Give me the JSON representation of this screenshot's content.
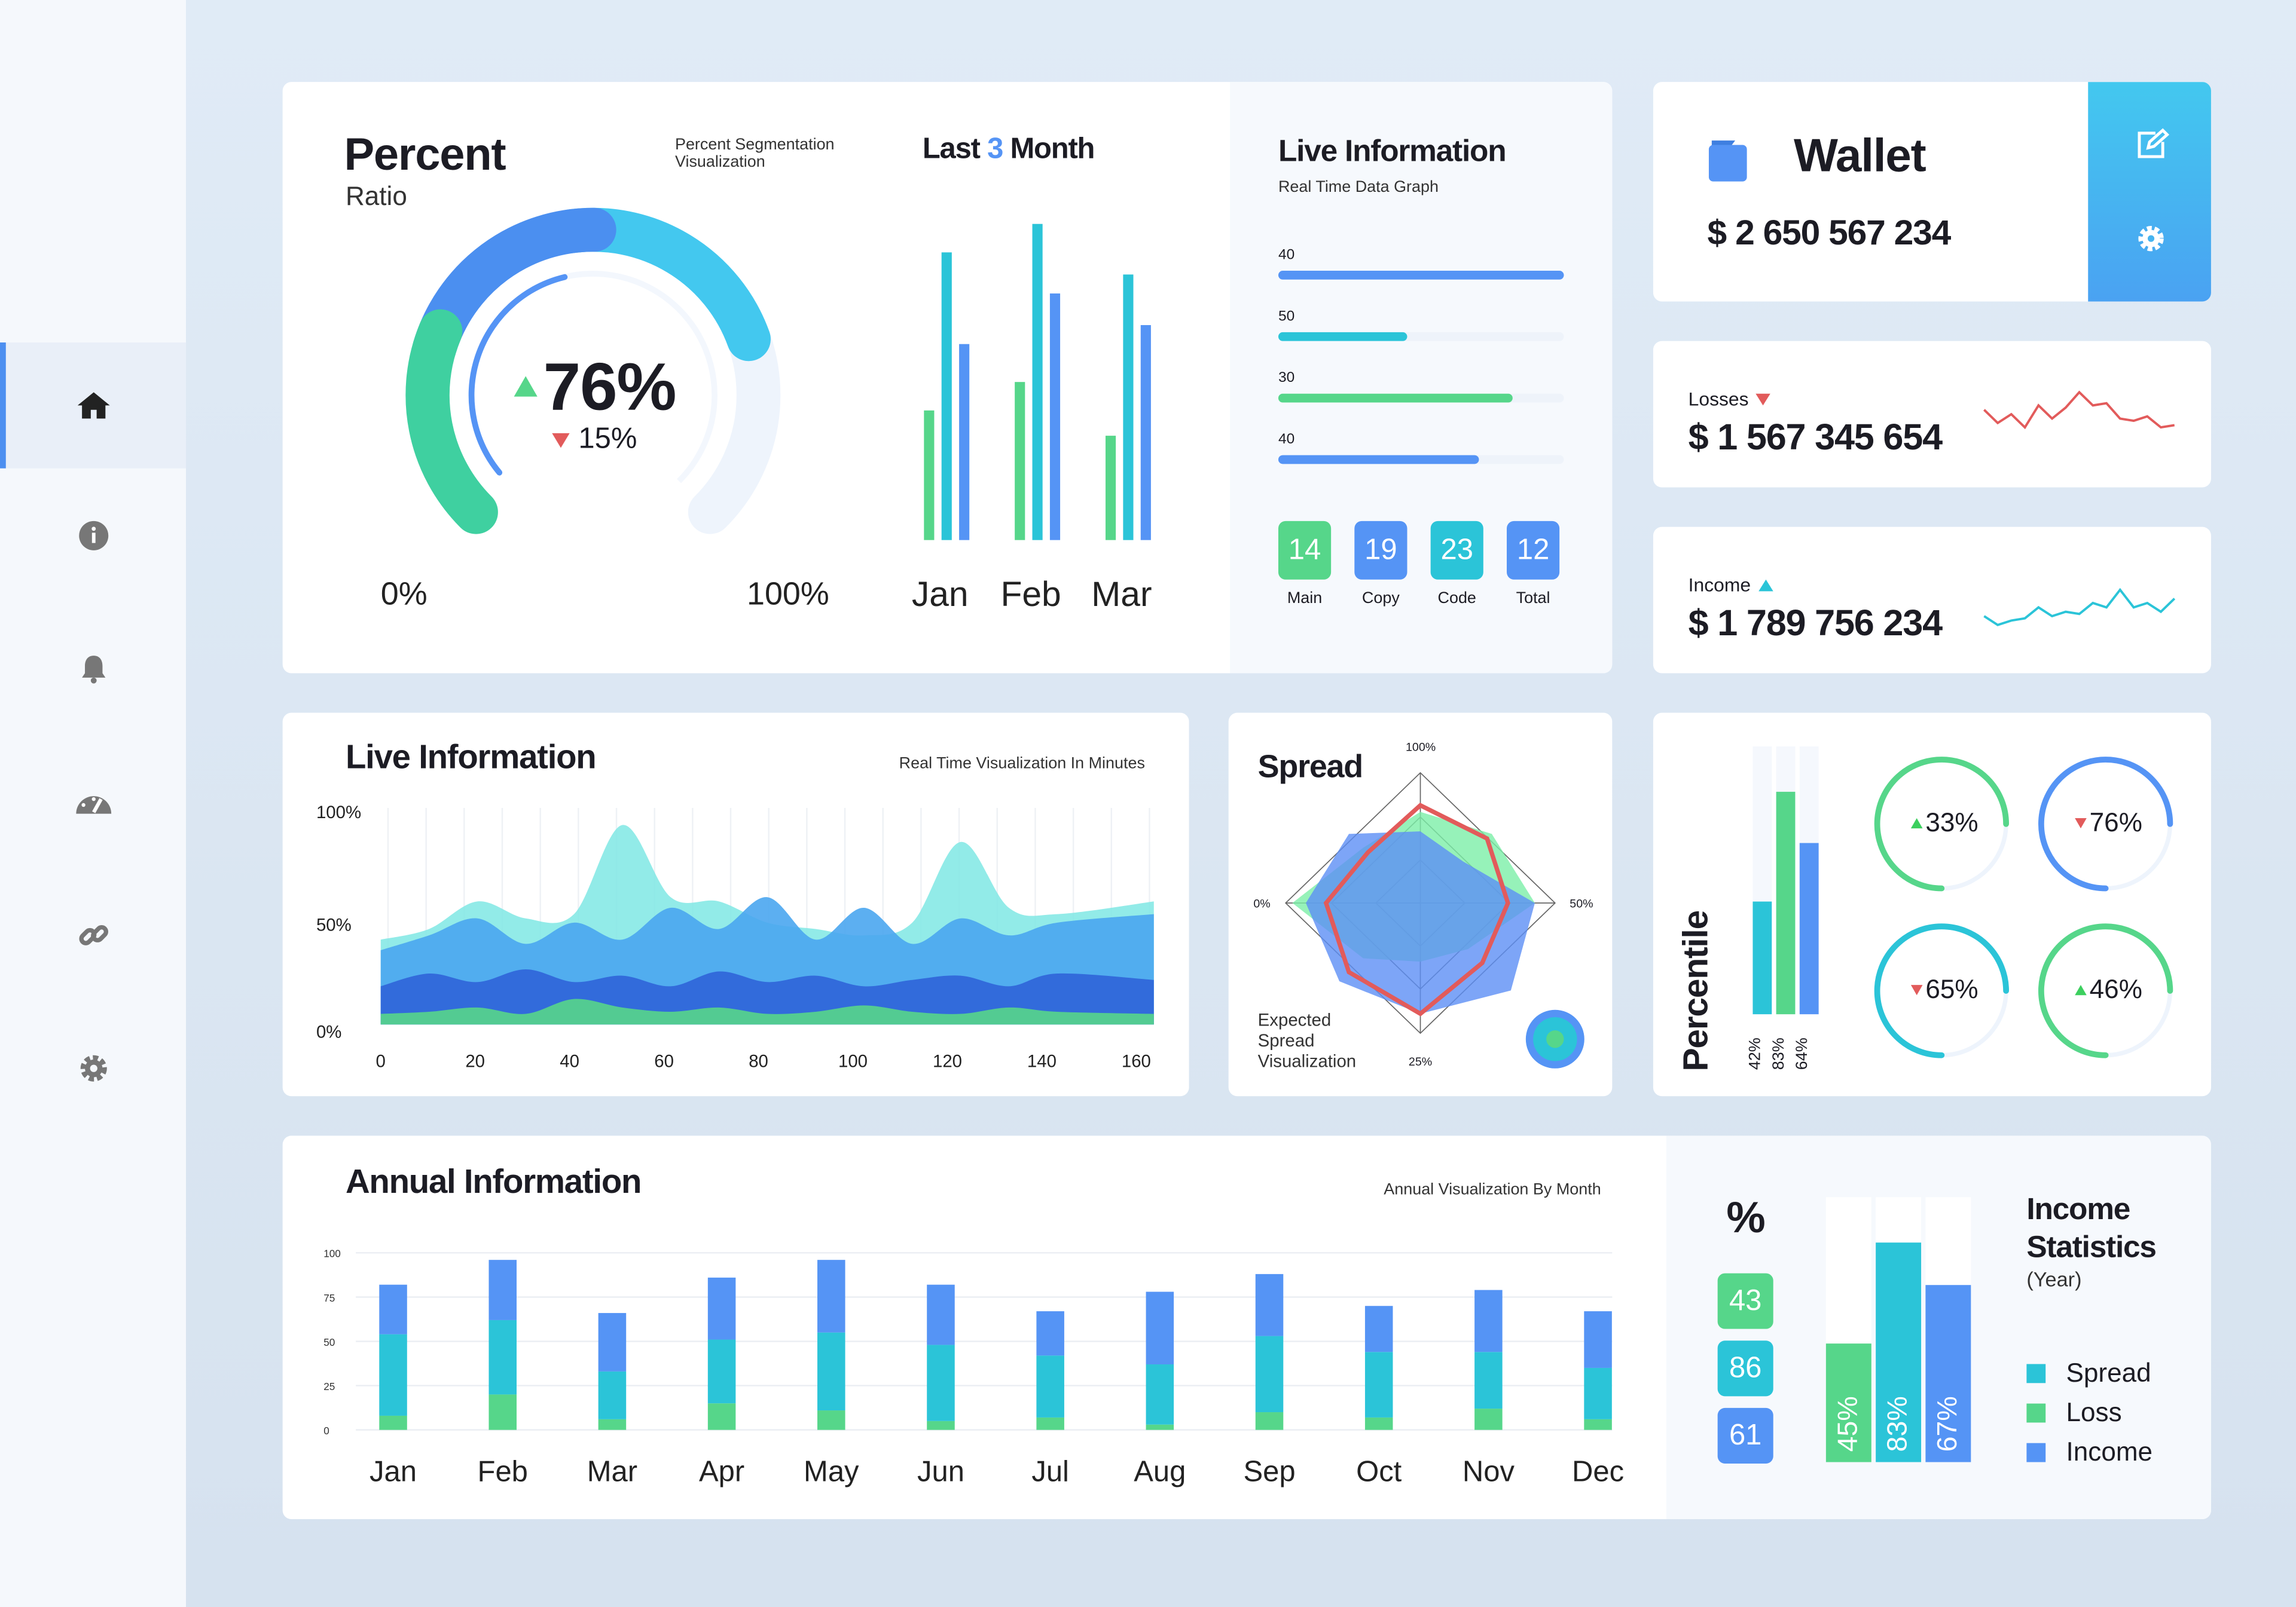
{
  "colors": {
    "green": "#56d68a",
    "cyan": "#2bc4d8",
    "blue": "#5594f5",
    "red": "#e25b5b",
    "light": "#eef4fc"
  },
  "sidebar": {
    "items": [
      {
        "name": "home",
        "icon": "home-icon",
        "active": true
      },
      {
        "name": "info",
        "icon": "info-icon"
      },
      {
        "name": "notifications",
        "icon": "bell-icon"
      },
      {
        "name": "dashboard",
        "icon": "gauge-icon"
      },
      {
        "name": "links",
        "icon": "link-icon"
      },
      {
        "name": "settings",
        "icon": "gear-icon"
      }
    ]
  },
  "percent": {
    "title": "Percent",
    "subtitle": "Ratio",
    "caption_line1": "Percent Segmentation",
    "caption_line2": "Visualization",
    "value": 76,
    "value_label": "76%",
    "change_label": "15%",
    "min_label": "0%",
    "max_label": "100%"
  },
  "last3": {
    "title_pre": "Last ",
    "title_num": "3",
    "title_post": " Month"
  },
  "live_top": {
    "title": "Live Information",
    "subtitle": "Real Time Data Graph",
    "bars": [
      {
        "label": "40",
        "fill": 1.0,
        "color": "#5594f5"
      },
      {
        "label": "50",
        "fill": 0.45,
        "color": "#2bc4d8"
      },
      {
        "label": "30",
        "fill": 0.82,
        "color": "#56d68a"
      },
      {
        "label": "40",
        "fill": 0.7,
        "color": "#5594f5"
      }
    ],
    "boxes": [
      {
        "value": "14",
        "label": "Main",
        "color": "#56d68a"
      },
      {
        "value": "19",
        "label": "Copy",
        "color": "#5594f5"
      },
      {
        "value": "23",
        "label": "Code",
        "color": "#2bc4d8"
      },
      {
        "value": "12",
        "label": "Total",
        "color": "#5594f5"
      }
    ]
  },
  "wallet": {
    "title": "Wallet",
    "amount": "$ 2 650 567 234",
    "edit_icon": "edit-icon",
    "settings_icon": "gear-icon"
  },
  "losses": {
    "label": "Losses",
    "amount": "$ 1 567 345 654",
    "trend": "down",
    "spark": [
      0.5,
      0.2,
      0.4,
      0.1,
      0.6,
      0.3,
      0.55,
      0.9,
      0.6,
      0.65,
      0.3,
      0.25,
      0.35,
      0.1,
      0.15
    ]
  },
  "income": {
    "label": "Income",
    "amount": "$ 1 789 756 234",
    "trend": "up",
    "spark": [
      0.3,
      0.1,
      0.2,
      0.25,
      0.5,
      0.3,
      0.4,
      0.35,
      0.6,
      0.5,
      0.9,
      0.5,
      0.6,
      0.4,
      0.7
    ]
  },
  "live_area": {
    "title": "Live Information",
    "subtitle": "Real Time Visualization In Minutes"
  },
  "spread": {
    "title": "Spread",
    "caption_line1": "Expected",
    "caption_line2": "Spread",
    "caption_line3": "Visualization",
    "axis_top": "100%",
    "axis_right": "50%",
    "axis_bottom": "25%",
    "axis_left": "0%"
  },
  "percentile": {
    "title": "Percentile",
    "bars": [
      {
        "value": 42,
        "label": "42%",
        "color": "#2bc4d8"
      },
      {
        "value": 83,
        "label": "83%",
        "color": "#56d68a"
      },
      {
        "value": 64,
        "label": "64%",
        "color": "#5594f5"
      }
    ],
    "rings": [
      {
        "label": "33%",
        "trend": "up",
        "color": "#56d68a"
      },
      {
        "label": "76%",
        "trend": "down",
        "color": "#5594f5"
      },
      {
        "label": "65%",
        "trend": "down",
        "color": "#2bc4d8"
      },
      {
        "label": "46%",
        "trend": "up",
        "color": "#56d68a"
      }
    ]
  },
  "annual": {
    "title": "Annual Information",
    "subtitle": "Annual Visualization By Month"
  },
  "income_stats": {
    "symbol": "%",
    "title_line1": "Income",
    "title_line2": "Statistics",
    "period": "(Year)",
    "boxes": [
      {
        "value": "43",
        "color": "#56d68a"
      },
      {
        "value": "86",
        "color": "#2bc4d8"
      },
      {
        "value": "61",
        "color": "#5594f5"
      }
    ],
    "bars": [
      {
        "value": 45,
        "label": "45%",
        "color": "#56d68a"
      },
      {
        "value": 83,
        "label": "83%",
        "color": "#2bc4d8"
      },
      {
        "value": 67,
        "label": "67%",
        "color": "#5594f5"
      }
    ],
    "legend": [
      {
        "label": "Spread",
        "color": "#2bc4d8"
      },
      {
        "label": "Loss",
        "color": "#56d68a"
      },
      {
        "label": "Income",
        "color": "#5594f5"
      }
    ]
  },
  "chart_data": [
    {
      "type": "bar",
      "id": "last3",
      "categories": [
        "Jan",
        "Feb",
        "Mar"
      ],
      "series": [
        {
          "values": [
            41,
            50,
            33
          ],
          "color": "#56d68a"
        },
        {
          "values": [
            91,
            100,
            84
          ],
          "color": "#2bc4d8"
        },
        {
          "values": [
            62,
            78,
            68
          ],
          "color": "#5594f5"
        }
      ]
    },
    {
      "type": "area",
      "id": "live_area",
      "x": [
        0,
        10,
        20,
        30,
        40,
        50,
        60,
        70,
        80,
        90,
        100,
        110,
        120,
        130,
        140,
        160
      ],
      "xticks": [
        "0",
        "20",
        "40",
        "60",
        "80",
        "100",
        "120",
        "140",
        "160"
      ],
      "yticks": [
        "100%",
        "50%",
        "0%"
      ],
      "ylim": [
        0,
        100
      ],
      "xlim": [
        0,
        160
      ],
      "series": [
        {
          "values": [
            40,
            45,
            58,
            50,
            52,
            94,
            60,
            58,
            48,
            45,
            42,
            48,
            86,
            55,
            52,
            58
          ],
          "color": "#7fe7e4"
        },
        {
          "values": [
            35,
            42,
            50,
            38,
            48,
            40,
            55,
            45,
            60,
            40,
            55,
            38,
            50,
            42,
            48,
            52
          ],
          "color": "#4aa6f0"
        },
        {
          "values": [
            18,
            24,
            20,
            26,
            20,
            23,
            18,
            25,
            20,
            23,
            18,
            21,
            23,
            18,
            24,
            21
          ],
          "color": "#2f64d8"
        },
        {
          "values": [
            5,
            6,
            8,
            5,
            12,
            8,
            6,
            8,
            5,
            6,
            9,
            6,
            5,
            8,
            6,
            5
          ],
          "color": "#56d68a"
        }
      ]
    },
    {
      "type": "radar",
      "id": "spread",
      "axes": 8,
      "series": [
        {
          "values": [
            0.7,
            0.75,
            0.85,
            0.5,
            0.45,
            0.6,
            0.95,
            0.6
          ],
          "color": "#7cefa8",
          "fill": true
        },
        {
          "values": [
            0.55,
            0.45,
            0.85,
            0.95,
            0.85,
            0.85,
            0.85,
            0.75
          ],
          "color": "#5c8ff5",
          "fill": true
        },
        {
          "values": [
            0.75,
            0.7,
            0.65,
            0.65,
            0.85,
            0.75,
            0.7,
            0.55
          ],
          "color": "#e25b5b",
          "fill": false
        }
      ]
    },
    {
      "type": "bar",
      "stacked": true,
      "id": "annual",
      "categories": [
        "Jan",
        "Feb",
        "Mar",
        "Apr",
        "May",
        "Jun",
        "Jul",
        "Aug",
        "Sep",
        "Oct",
        "Nov",
        "Dec"
      ],
      "yticks": [
        100,
        75,
        50,
        25,
        0
      ],
      "ylim": [
        0,
        100
      ],
      "series": [
        {
          "name": "Loss",
          "values": [
            8,
            20,
            6,
            15,
            11,
            5,
            7,
            3,
            10,
            7,
            12,
            6
          ],
          "color": "#56d68a"
        },
        {
          "name": "Spread",
          "values": [
            46,
            42,
            27,
            36,
            44,
            43,
            35,
            34,
            43,
            37,
            32,
            29
          ],
          "color": "#2bc4d8"
        },
        {
          "name": "Income",
          "values": [
            28,
            34,
            33,
            35,
            41,
            34,
            25,
            41,
            35,
            26,
            35,
            32
          ],
          "color": "#5594f5"
        }
      ]
    }
  ]
}
